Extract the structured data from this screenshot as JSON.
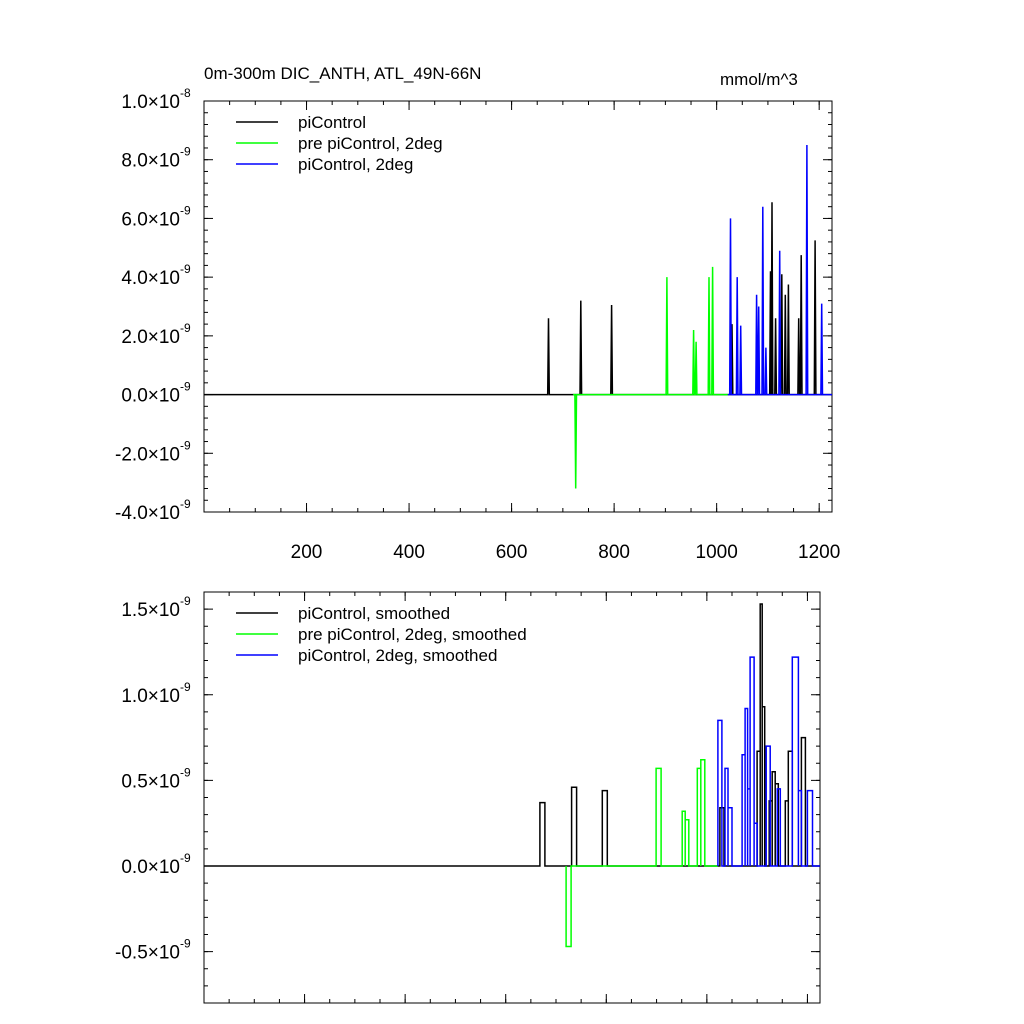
{
  "title_left": "0m-300m DIC_ANTH, ATL_49N-66N",
  "title_right": "mmol/m^3",
  "chart_data": [
    {
      "type": "line",
      "xlim": [
        0,
        1225
      ],
      "ylim": [
        -4e-09,
        1e-08
      ],
      "yticks": [
        -4e-09,
        -2e-09,
        0.0,
        2e-09,
        4e-09,
        6e-09,
        8e-09,
        1e-08
      ],
      "ytick_labels": [
        {
          "mantissa": "-4.0",
          "times": "×10",
          "exp": "-9"
        },
        {
          "mantissa": "-2.0",
          "times": "×10",
          "exp": "-9"
        },
        {
          "mantissa": "0.0",
          "times": "×10",
          "exp": "-9"
        },
        {
          "mantissa": "2.0",
          "times": "×10",
          "exp": "-9"
        },
        {
          "mantissa": "4.0",
          "times": "×10",
          "exp": "-9"
        },
        {
          "mantissa": "6.0",
          "times": "×10",
          "exp": "-9"
        },
        {
          "mantissa": "8.0",
          "times": "×10",
          "exp": "-9"
        },
        {
          "mantissa": "1.0",
          "times": "×10",
          "exp": "-8"
        }
      ],
      "xticks": [
        200,
        400,
        600,
        800,
        1000,
        1200
      ],
      "xtick_labels": [
        "200",
        "400",
        "600",
        "800",
        "1000",
        "1200"
      ],
      "legend": [
        "piControl",
        "pre piControl, 2deg",
        "piControl, 2deg"
      ],
      "legend_position": "top-left",
      "series": [
        {
          "name": "piControl",
          "color": "#000000",
          "style": "spike",
          "x_range": [
            0,
            1225
          ],
          "spikes": [
            [
              672,
              2.6e-09
            ],
            [
              735,
              3.2e-09
            ],
            [
              795,
              3.05e-09
            ],
            [
              1030,
              2.4e-09
            ],
            [
              1105,
              4.2e-09
            ],
            [
              1108,
              6.55e-09
            ],
            [
              1115,
              2.6e-09
            ],
            [
              1127,
              4.1e-09
            ],
            [
              1134,
              3.4e-09
            ],
            [
              1140,
              3.75e-09
            ],
            [
              1160,
              2.6e-09
            ],
            [
              1165,
              4.75e-09
            ],
            [
              1192,
              5.25e-09
            ]
          ]
        },
        {
          "name": "pre piControl, 2deg",
          "color": "#00ff00",
          "style": "spike",
          "x_range": [
            720,
            1022
          ],
          "spikes": [
            [
              725,
              -3.2e-09
            ],
            [
              903,
              4e-09
            ],
            [
              955,
              2.2e-09
            ],
            [
              960,
              1.8e-09
            ],
            [
              985,
              4e-09
            ],
            [
              992,
              4.35e-09
            ]
          ]
        },
        {
          "name": "piControl, 2deg",
          "color": "#0000ff",
          "style": "spike",
          "x_range": [
            1022,
            1225
          ],
          "spikes": [
            [
              1027,
              6e-09
            ],
            [
              1040,
              4e-09
            ],
            [
              1047,
              2.35e-09
            ],
            [
              1078,
              3.4e-09
            ],
            [
              1082,
              3e-09
            ],
            [
              1090,
              6.4e-09
            ],
            [
              1096,
              1.6e-09
            ],
            [
              1123,
              4.9e-09
            ],
            [
              1176,
              8.5e-09
            ],
            [
              1205,
              3.1e-09
            ]
          ]
        }
      ]
    },
    {
      "type": "line",
      "xlim": [
        0,
        1225
      ],
      "ylim": [
        -8e-10,
        1.6e-09
      ],
      "yticks": [
        -5e-10,
        0.0,
        5e-10,
        1e-09,
        1.5e-09
      ],
      "ytick_labels": [
        {
          "mantissa": "-0.5",
          "times": "×10",
          "exp": "-9"
        },
        {
          "mantissa": "0.0",
          "times": "×10",
          "exp": "-9"
        },
        {
          "mantissa": "0.5",
          "times": "×10",
          "exp": "-9"
        },
        {
          "mantissa": "1.0",
          "times": "×10",
          "exp": "-9"
        },
        {
          "mantissa": "1.5",
          "times": "×10",
          "exp": "-9"
        }
      ],
      "xticks": [
        200,
        400,
        600,
        800,
        1000,
        1200
      ],
      "xtick_labels": [],
      "legend": [
        "piControl, smoothed",
        "pre piControl, 2deg, smoothed",
        "piControl, 2deg, smoothed"
      ],
      "legend_position": "top-left",
      "series": [
        {
          "name": "piControl, smoothed",
          "color": "#000000",
          "style": "boxcar",
          "x_range": [
            0,
            1225
          ],
          "pulses": [
            [
              668,
              678,
              3.7e-10
            ],
            [
              731,
              741,
              4.6e-10
            ],
            [
              792,
              802,
              4.4e-10
            ],
            [
              1026,
              1034,
              3.4e-10
            ],
            [
              1100,
              1106,
              6.7e-10
            ],
            [
              1106,
              1110,
              1.53e-09
            ],
            [
              1110,
              1115,
              9.3e-10
            ],
            [
              1124,
              1130,
              3.8e-10
            ],
            [
              1130,
              1136,
              5.5e-10
            ],
            [
              1136,
              1142,
              4.8e-10
            ],
            [
              1156,
              1162,
              3.8e-10
            ],
            [
              1162,
              1170,
              6.7e-10
            ],
            [
              1188,
              1196,
              7.5e-10
            ]
          ]
        },
        {
          "name": "pre piControl, 2deg, smoothed",
          "color": "#00ff00",
          "style": "boxcar",
          "x_range": [
            720,
            1022
          ],
          "pulses": [
            [
              720,
              730,
              -4.7e-10
            ],
            [
              899,
              909,
              5.7e-10
            ],
            [
              951,
              957,
              3.2e-10
            ],
            [
              957,
              964,
              2.7e-10
            ],
            [
              981,
              988,
              5.7e-10
            ],
            [
              988,
              996,
              6.2e-10
            ]
          ]
        },
        {
          "name": "piControl, 2deg, smoothed",
          "color": "#0000ff",
          "style": "boxcar",
          "x_range": [
            1022,
            1225
          ],
          "pulses": [
            [
              1022,
              1030,
              8.5e-10
            ],
            [
              1036,
              1042,
              5.7e-10
            ],
            [
              1042,
              1050,
              3.4e-10
            ],
            [
              1070,
              1076,
              6.5e-10
            ],
            [
              1076,
              1081,
              9.2e-10
            ],
            [
              1081,
              1086,
              4.5e-10
            ],
            [
              1086,
              1094,
              1.22e-09
            ],
            [
              1094,
              1100,
              2.5e-10
            ],
            [
              1118,
              1126,
              7e-10
            ],
            [
              1140,
              1146,
              4.5e-10
            ],
            [
              1170,
              1182,
              1.22e-09
            ],
            [
              1182,
              1188,
              4.4e-10
            ],
            [
              1200,
              1210,
              4.4e-10
            ]
          ]
        }
      ]
    }
  ]
}
